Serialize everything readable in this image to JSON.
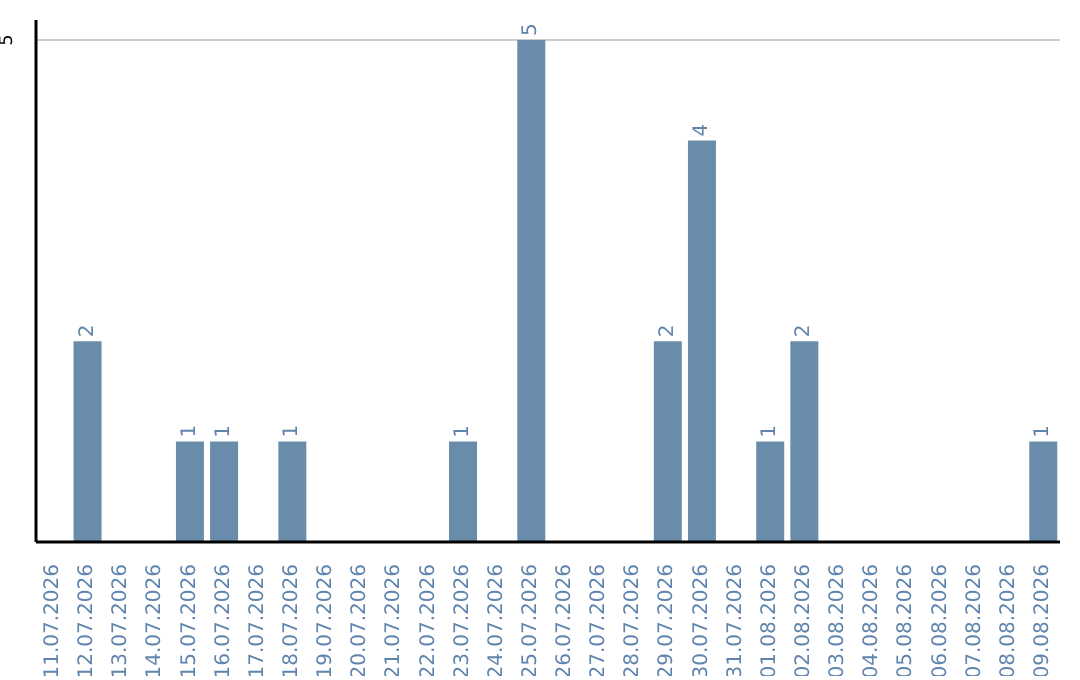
{
  "chart_data": {
    "type": "bar",
    "categories": [
      "11.07.2026",
      "12.07.2026",
      "13.07.2026",
      "14.07.2026",
      "15.07.2026",
      "16.07.2026",
      "17.07.2026",
      "18.07.2026",
      "19.07.2026",
      "20.07.2026",
      "21.07.2026",
      "22.07.2026",
      "23.07.2026",
      "24.07.2026",
      "25.07.2026",
      "26.07.2026",
      "27.07.2026",
      "28.07.2026",
      "29.07.2026",
      "30.07.2026",
      "31.07.2026",
      "01.08.2026",
      "02.08.2026",
      "03.08.2026",
      "04.08.2026",
      "05.08.2026",
      "06.08.2026",
      "07.08.2026",
      "08.08.2026",
      "09.08.2026"
    ],
    "values": [
      0,
      2,
      0,
      0,
      1,
      1,
      0,
      1,
      0,
      0,
      0,
      0,
      1,
      0,
      5,
      0,
      0,
      0,
      2,
      4,
      0,
      1,
      2,
      0,
      0,
      0,
      0,
      0,
      0,
      1
    ],
    "value_labels": [
      null,
      "2",
      null,
      null,
      "1",
      "1",
      null,
      "1",
      null,
      null,
      null,
      null,
      "1",
      null,
      "5",
      null,
      null,
      null,
      "2",
      "4",
      null,
      "1",
      "2",
      null,
      null,
      null,
      null,
      null,
      null,
      "1"
    ],
    "color": "#6a8cab",
    "ylim": [
      0,
      5.2
    ],
    "yticks": [
      5
    ],
    "grid": "y"
  }
}
